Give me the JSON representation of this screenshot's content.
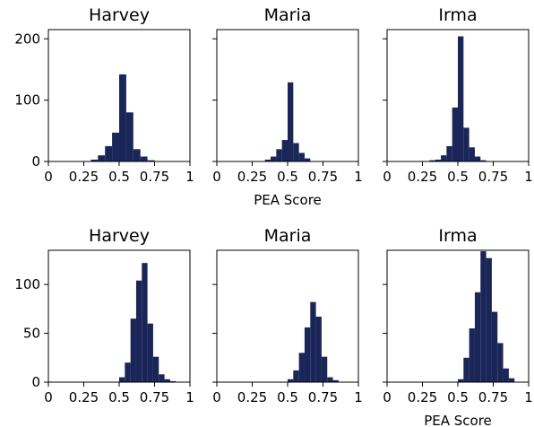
{
  "chart_data": [
    {
      "type": "bar",
      "title": "Harvey",
      "xlabel": "",
      "ylabel": "",
      "xlim": [
        0,
        1
      ],
      "ylim": [
        0,
        215
      ],
      "xticks": [
        "0",
        "0.25",
        "0.5",
        "0.75",
        "1"
      ],
      "yticks": [
        "0",
        "100",
        "200"
      ],
      "bin_width": 0.05,
      "bins": [
        0.3,
        0.35,
        0.4,
        0.45,
        0.5,
        0.55,
        0.6,
        0.65,
        0.7
      ],
      "values": [
        3,
        10,
        25,
        47,
        142,
        80,
        20,
        8,
        2
      ]
    },
    {
      "type": "bar",
      "title": "Maria",
      "xlabel": "PEA Score",
      "ylabel": "",
      "xlim": [
        0,
        1
      ],
      "ylim": [
        0,
        215
      ],
      "xticks": [
        "0",
        "0.25",
        "0.5",
        "0.75",
        "1"
      ],
      "yticks": [],
      "bin_width": 0.04,
      "bins": [
        0.34,
        0.38,
        0.42,
        0.46,
        0.5,
        0.54,
        0.58,
        0.62
      ],
      "values": [
        3,
        8,
        20,
        35,
        129,
        30,
        14,
        5
      ]
    },
    {
      "type": "bar",
      "title": "Irma",
      "xlabel": "",
      "ylabel": "",
      "xlim": [
        0,
        1
      ],
      "ylim": [
        0,
        215
      ],
      "xticks": [
        "0",
        "0.25",
        "0.5",
        "0.75",
        "1"
      ],
      "yticks": [],
      "bin_width": 0.04,
      "bins": [
        0.3,
        0.34,
        0.38,
        0.42,
        0.46,
        0.5,
        0.54,
        0.58,
        0.62,
        0.66
      ],
      "values": [
        2,
        3,
        10,
        25,
        88,
        204,
        55,
        23,
        8,
        2
      ]
    },
    {
      "type": "bar",
      "title": "Harvey",
      "xlabel": "",
      "ylabel": "",
      "xlim": [
        0,
        1
      ],
      "ylim": [
        0,
        135
      ],
      "xticks": [
        "0",
        "0.25",
        "0.5",
        "0.75",
        "1"
      ],
      "yticks": [
        "0",
        "50",
        "100"
      ],
      "bin_width": 0.04,
      "bins": [
        0.5,
        0.54,
        0.58,
        0.62,
        0.66,
        0.7,
        0.74,
        0.78,
        0.82,
        0.86
      ],
      "values": [
        5,
        20,
        65,
        104,
        122,
        60,
        26,
        8,
        3,
        1
      ]
    },
    {
      "type": "bar",
      "title": "Maria",
      "xlabel": "",
      "ylabel": "",
      "xlim": [
        0,
        1
      ],
      "ylim": [
        0,
        135
      ],
      "xticks": [
        "0",
        "0.25",
        "0.5",
        "0.75",
        "1"
      ],
      "yticks": [],
      "bin_width": 0.04,
      "bins": [
        0.5,
        0.54,
        0.58,
        0.62,
        0.66,
        0.7,
        0.74,
        0.78,
        0.82
      ],
      "values": [
        3,
        12,
        30,
        56,
        82,
        67,
        26,
        5,
        2
      ]
    },
    {
      "type": "bar",
      "title": "Irma",
      "xlabel": "PEA Score",
      "ylabel": "",
      "xlim": [
        0,
        1
      ],
      "ylim": [
        0,
        135
      ],
      "xticks": [
        "0",
        "0.25",
        "0.5",
        "0.75",
        "1"
      ],
      "yticks": [],
      "bin_width": 0.04,
      "bins": [
        0.5,
        0.54,
        0.58,
        0.62,
        0.66,
        0.7,
        0.74,
        0.78,
        0.82,
        0.86
      ],
      "values": [
        3,
        25,
        55,
        92,
        134,
        127,
        72,
        40,
        14,
        4
      ]
    }
  ]
}
